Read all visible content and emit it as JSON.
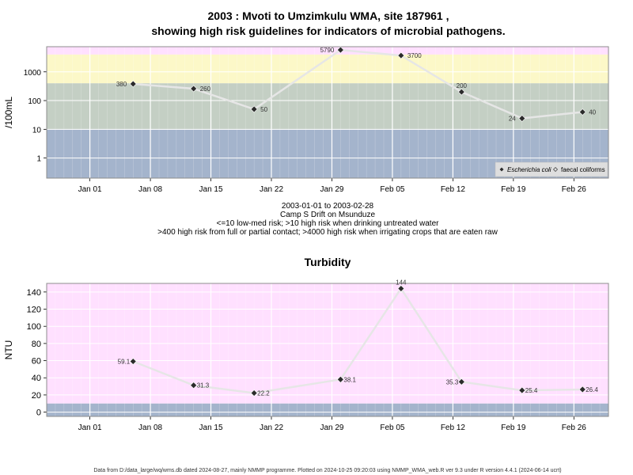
{
  "header": {
    "title_line1": "2003 : Mvoti to Umzimkulu WMA, site 187961 ,",
    "title_line2": "showing high risk guidelines for indicators of microbial pathogens."
  },
  "notes": {
    "date_range": "2003-01-01 to 2003-02-28",
    "site_name": "Camp S Drift on Msunduze",
    "guideline_1": "<=10 low-med risk; >10 high risk when drinking untreated water",
    "guideline_2": ">400 high risk from full or partial contact; >4000 high risk when irrigating crops that are eaten raw"
  },
  "footer": {
    "text": "Data from D:/data_large/wq/wms.db dated 2024-08-27, mainly NMMP programme. Plotted on 2024-10-25 09:20:03 using NMMP_WMA_web.R ver 9.3 under R version 4.4.1 (2024-06-14 ucrt)"
  },
  "chart_data": [
    {
      "type": "line",
      "title": "",
      "ylabel": "/100mL",
      "y_scale": "log",
      "ylim": [
        0.2,
        7500
      ],
      "y_ticks": [
        1,
        10,
        100,
        1000
      ],
      "xlim": [
        "2002-12-27",
        "2003-03-02"
      ],
      "x_ticks": [
        {
          "date": "2003-01-01",
          "label": "Jan 01"
        },
        {
          "date": "2003-01-08",
          "label": "Jan 08"
        },
        {
          "date": "2003-01-15",
          "label": "Jan 15"
        },
        {
          "date": "2003-01-22",
          "label": "Jan 22"
        },
        {
          "date": "2003-01-29",
          "label": "Jan 29"
        },
        {
          "date": "2003-02-05",
          "label": "Feb 05"
        },
        {
          "date": "2003-02-12",
          "label": "Feb 12"
        },
        {
          "date": "2003-02-19",
          "label": "Feb 19"
        },
        {
          "date": "2003-02-26",
          "label": "Feb 26"
        }
      ],
      "bands": [
        {
          "from": 4000,
          "to": 7500,
          "color": "#ffe0ff"
        },
        {
          "from": 400,
          "to": 4000,
          "color": "#fcf8c8"
        },
        {
          "from": 10,
          "to": 400,
          "color": "#c4cfc4"
        },
        {
          "from": 0.2,
          "to": 10,
          "color": "#a4b4cc"
        }
      ],
      "legend": {
        "position": "bottom-right",
        "entries": [
          {
            "label": "Escherichia coli",
            "marker": "filled-diamond"
          },
          {
            "label": "faecal coliforms",
            "marker": "open-diamond"
          }
        ]
      },
      "series": [
        {
          "name": "Escherichia coli",
          "points": [
            {
              "x": "2003-01-06",
              "y": 380,
              "label": "380",
              "label_side": "left"
            },
            {
              "x": "2003-01-13",
              "y": 260,
              "label": "260",
              "label_side": "right"
            },
            {
              "x": "2003-01-20",
              "y": 50,
              "label": "50",
              "label_side": "right"
            },
            {
              "x": "2003-01-30",
              "y": 5790,
              "label": "5790",
              "label_side": "left"
            },
            {
              "x": "2003-02-06",
              "y": 3700,
              "label": "3700",
              "label_side": "right"
            },
            {
              "x": "2003-02-13",
              "y": 200,
              "label": "200",
              "label_side": "top"
            },
            {
              "x": "2003-02-20",
              "y": 24,
              "label": "24",
              "label_side": "left"
            },
            {
              "x": "2003-02-27",
              "y": 40,
              "label": "40",
              "label_side": "right"
            }
          ]
        }
      ]
    },
    {
      "type": "line",
      "title": "Turbidity",
      "ylabel": "NTU",
      "ylim": [
        -5,
        150
      ],
      "y_ticks": [
        0,
        20,
        40,
        60,
        80,
        100,
        120,
        140
      ],
      "xlim": [
        "2002-12-27",
        "2003-03-02"
      ],
      "x_ticks": [
        {
          "date": "2003-01-01",
          "label": "Jan 01"
        },
        {
          "date": "2003-01-08",
          "label": "Jan 08"
        },
        {
          "date": "2003-01-15",
          "label": "Jan 15"
        },
        {
          "date": "2003-01-22",
          "label": "Jan 22"
        },
        {
          "date": "2003-01-29",
          "label": "Jan 29"
        },
        {
          "date": "2003-02-05",
          "label": "Feb 05"
        },
        {
          "date": "2003-02-12",
          "label": "Feb 12"
        },
        {
          "date": "2003-02-19",
          "label": "Feb 19"
        },
        {
          "date": "2003-02-26",
          "label": "Feb 26"
        }
      ],
      "bands": [
        {
          "from": 10,
          "to": 150,
          "color": "#ffe0ff"
        },
        {
          "from": -5,
          "to": 10,
          "color": "#a4b4cc"
        }
      ],
      "series": [
        {
          "points": [
            {
              "x": "2003-01-06",
              "y": 59.1,
              "label": "59.1",
              "label_side": "left"
            },
            {
              "x": "2003-01-13",
              "y": 31.3,
              "label": "31.3",
              "label_side": "right"
            },
            {
              "x": "2003-01-20",
              "y": 22.2,
              "label": "22.2",
              "label_side": "right"
            },
            {
              "x": "2003-01-30",
              "y": 38.1,
              "label": "38.1",
              "label_side": "right"
            },
            {
              "x": "2003-02-06",
              "y": 144,
              "label": "144",
              "label_side": "top"
            },
            {
              "x": "2003-02-13",
              "y": 35.3,
              "label": "35.3",
              "label_side": "left"
            },
            {
              "x": "2003-02-20",
              "y": 25.4,
              "label": "25.4",
              "label_side": "right"
            },
            {
              "x": "2003-02-27",
              "y": 26.4,
              "label": "26.4",
              "label_side": "right"
            }
          ]
        }
      ]
    }
  ]
}
